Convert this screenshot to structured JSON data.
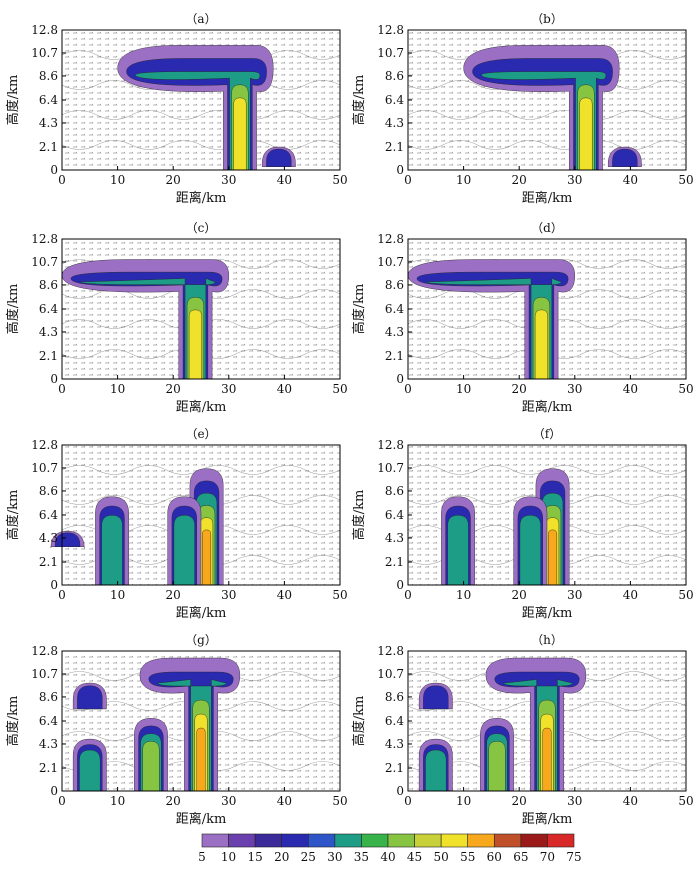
{
  "chart_data": [
    {
      "type": "heatmap",
      "panel_label": "（a）",
      "xlabel": "距离/km",
      "ylabel": "高度/km",
      "xlim": [
        0,
        50
      ],
      "ylim": [
        0,
        12.8
      ],
      "x_ticks": [
        "0",
        "10",
        "20",
        "30",
        "40",
        "50"
      ],
      "y_ticks": [
        "0",
        "2.1",
        "4.3",
        "6.4",
        "8.6",
        "10.7",
        "12.8"
      ],
      "cells": [
        {
          "x": 32,
          "top": 12.0,
          "bottom": 0,
          "anvil_left": 10,
          "anvil_right": 38,
          "anvil_base": 7.2,
          "peak": 50
        },
        {
          "x": 39,
          "top": 2.2,
          "bottom": 0.3,
          "anvil_left": 0,
          "anvil_right": 0,
          "anvil_base": 0,
          "peak": 25
        }
      ]
    },
    {
      "type": "heatmap",
      "panel_label": "（b）",
      "xlabel": "距离/km",
      "ylabel": "高度/km",
      "xlim": [
        0,
        50
      ],
      "ylim": [
        0,
        12.8
      ],
      "x_ticks": [
        "0",
        "10",
        "20",
        "30",
        "40",
        "50"
      ],
      "y_ticks": [
        "0",
        "2.1",
        "4.3",
        "6.4",
        "8.6",
        "10.7",
        "12.8"
      ],
      "cells": [
        {
          "x": 32,
          "top": 12.0,
          "bottom": 0,
          "anvil_left": 10,
          "anvil_right": 38,
          "anvil_base": 7.2,
          "peak": 50
        },
        {
          "x": 39,
          "top": 2.2,
          "bottom": 0.3,
          "anvil_left": 0,
          "anvil_right": 0,
          "anvil_base": 0,
          "peak": 25
        }
      ]
    },
    {
      "type": "heatmap",
      "panel_label": "（c）",
      "xlabel": "距离/km",
      "ylabel": "高度/km",
      "xlim": [
        0,
        50
      ],
      "ylim": [
        0,
        12.8
      ],
      "x_ticks": [
        "0",
        "10",
        "20",
        "30",
        "40",
        "50"
      ],
      "y_ticks": [
        "0",
        "2.1",
        "4.3",
        "6.4",
        "8.6",
        "10.7",
        "12.8"
      ],
      "cells": [
        {
          "x": 24,
          "top": 11.5,
          "bottom": 0,
          "anvil_left": 0,
          "anvil_right": 30,
          "anvil_base": 8.0,
          "peak": 50
        }
      ]
    },
    {
      "type": "heatmap",
      "panel_label": "（d）",
      "xlabel": "距离/km",
      "ylabel": "高度/km",
      "xlim": [
        0,
        50
      ],
      "ylim": [
        0,
        12.8
      ],
      "x_ticks": [
        "0",
        "10",
        "20",
        "30",
        "40",
        "50"
      ],
      "y_ticks": [
        "0",
        "2.1",
        "4.3",
        "6.4",
        "8.6",
        "10.7",
        "12.8"
      ],
      "cells": [
        {
          "x": 24,
          "top": 11.5,
          "bottom": 0,
          "anvil_left": 0,
          "anvil_right": 30,
          "anvil_base": 8.0,
          "peak": 50
        }
      ]
    },
    {
      "type": "heatmap",
      "panel_label": "（e）",
      "xlabel": "距离/km",
      "ylabel": "高度/km",
      "xlim": [
        0,
        50
      ],
      "ylim": [
        0,
        12.8
      ],
      "x_ticks": [
        "0",
        "10",
        "20",
        "30",
        "40",
        "50"
      ],
      "y_ticks": [
        "0",
        "2.1",
        "4.3",
        "6.4",
        "8.6",
        "10.7",
        "12.8"
      ],
      "cells": [
        {
          "x": 9,
          "top": 8.5,
          "bottom": 0,
          "anvil_left": 0,
          "anvil_right": 0,
          "anvil_base": 0,
          "peak": 35
        },
        {
          "x": 26,
          "top": 11.2,
          "bottom": 0,
          "anvil_left": 0,
          "anvil_right": 0,
          "anvil_base": 0,
          "peak": 55
        },
        {
          "x": 22,
          "top": 8.5,
          "bottom": 0,
          "anvil_left": 0,
          "anvil_right": 0,
          "anvil_base": 0,
          "peak": 35
        },
        {
          "x": 1,
          "top": 5.0,
          "bottom": 3.5,
          "anvil_left": 0,
          "anvil_right": 0,
          "anvil_base": 0,
          "peak": 20
        }
      ]
    },
    {
      "type": "heatmap",
      "panel_label": "（f）",
      "xlabel": "距离/km",
      "ylabel": "高度/km",
      "xlim": [
        0,
        50
      ],
      "ylim": [
        0,
        12.8
      ],
      "x_ticks": [
        "0",
        "10",
        "20",
        "30",
        "40",
        "50"
      ],
      "y_ticks": [
        "0",
        "2.1",
        "4.3",
        "6.4",
        "8.6",
        "10.7",
        "12.8"
      ],
      "cells": [
        {
          "x": 9,
          "top": 8.5,
          "bottom": 0,
          "anvil_left": 0,
          "anvil_right": 0,
          "anvil_base": 0,
          "peak": 35
        },
        {
          "x": 26,
          "top": 11.2,
          "bottom": 0,
          "anvil_left": 0,
          "anvil_right": 0,
          "anvil_base": 0,
          "peak": 55
        },
        {
          "x": 22,
          "top": 8.5,
          "bottom": 0,
          "anvil_left": 0,
          "anvil_right": 0,
          "anvil_base": 0,
          "peak": 35
        }
      ]
    },
    {
      "type": "heatmap",
      "panel_label": "（g）",
      "xlabel": "距离/km",
      "ylabel": "高度/km",
      "xlim": [
        0,
        50
      ],
      "ylim": [
        0,
        12.8
      ],
      "x_ticks": [
        "0",
        "10",
        "20",
        "30",
        "40",
        "50"
      ],
      "y_ticks": [
        "0",
        "2.1",
        "4.3",
        "6.4",
        "8.6",
        "10.7",
        "12.8"
      ],
      "cells": [
        {
          "x": 25,
          "top": 12.8,
          "bottom": 0,
          "anvil_left": 14,
          "anvil_right": 32,
          "anvil_base": 9.0,
          "peak": 55
        },
        {
          "x": 16,
          "top": 7.0,
          "bottom": 0,
          "anvil_left": 0,
          "anvil_right": 0,
          "anvil_base": 0,
          "peak": 45
        },
        {
          "x": 5,
          "top": 5.0,
          "bottom": 0,
          "anvil_left": 0,
          "anvil_right": 0,
          "anvil_base": 0,
          "peak": 30
        },
        {
          "x": 5,
          "top": 10.0,
          "bottom": 7.5,
          "anvil_left": 0,
          "anvil_right": 0,
          "anvil_base": 0,
          "peak": 20
        }
      ]
    },
    {
      "type": "heatmap",
      "panel_label": "（h）",
      "xlabel": "距离/km",
      "ylabel": "高度/km",
      "xlim": [
        0,
        50
      ],
      "ylim": [
        0,
        12.8
      ],
      "x_ticks": [
        "0",
        "10",
        "20",
        "30",
        "40",
        "50"
      ],
      "y_ticks": [
        "0",
        "2.1",
        "4.3",
        "6.4",
        "8.6",
        "10.7",
        "12.8"
      ],
      "cells": [
        {
          "x": 25,
          "top": 12.8,
          "bottom": 0,
          "anvil_left": 14,
          "anvil_right": 32,
          "anvil_base": 9.0,
          "peak": 55
        },
        {
          "x": 16,
          "top": 7.0,
          "bottom": 0,
          "anvil_left": 0,
          "anvil_right": 0,
          "anvil_base": 0,
          "peak": 45
        },
        {
          "x": 5,
          "top": 5.0,
          "bottom": 0,
          "anvil_left": 0,
          "anvil_right": 0,
          "anvil_base": 0,
          "peak": 30
        },
        {
          "x": 5,
          "top": 10.0,
          "bottom": 7.5,
          "anvil_left": 0,
          "anvil_right": 0,
          "anvil_base": 0,
          "peak": 20
        }
      ]
    }
  ],
  "colorbar": {
    "ticks": [
      "5",
      "10",
      "15",
      "20",
      "25",
      "30",
      "35",
      "40",
      "45",
      "50",
      "55",
      "60",
      "65",
      "70",
      "75"
    ],
    "colors": [
      "#9b6fc4",
      "#6a3fae",
      "#3a2a9a",
      "#2a2ab0",
      "#2f56c8",
      "#1d9c86",
      "#37b34a",
      "#86c442",
      "#c9d13a",
      "#f0e22a",
      "#f7a81c",
      "#c0502a",
      "#9a1a1a",
      "#d82828",
      "#f05a5a"
    ]
  }
}
